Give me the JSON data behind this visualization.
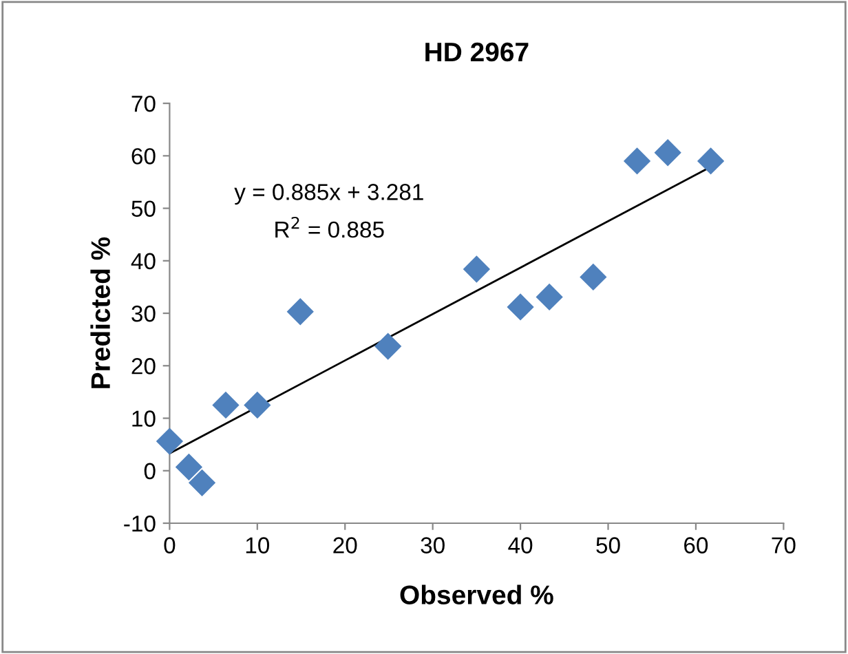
{
  "chart_data": {
    "type": "scatter",
    "title": "HD 2967",
    "xlabel": "Observed %",
    "ylabel": "Predicted %",
    "annotations": [
      "y = 0.885x + 3.281",
      "R$^{2}$ = 0.885"
    ],
    "series": [
      {
        "color": "#4f81bd",
        "marker": "diamond",
        "x": [
          0,
          2.2,
          3.7,
          6.4,
          10,
          14.9,
          24.9,
          35,
          40,
          43.3,
          48.3,
          53.3,
          56.8,
          61.7
        ],
        "values": [
          5.6,
          0.7,
          -2.3,
          12.5,
          12.5,
          30.3,
          23.7,
          38.4,
          31.2,
          33.1,
          36.9,
          59,
          60.6,
          59
        ]
      },
      {
        "type": "line",
        "color": "#000000",
        "marker": "none",
        "x": [
          0,
          61.7
        ],
        "values": [
          3.3,
          57.9
        ]
      }
    ],
    "xlim": [
      0,
      70
    ],
    "ylim": [
      -10,
      70
    ],
    "xticks": [
      0,
      10,
      20,
      30,
      40,
      50,
      60,
      70
    ],
    "yticks": [
      -10,
      0,
      10,
      20,
      30,
      40,
      50,
      60,
      70
    ],
    "grid": false,
    "legend": false
  }
}
